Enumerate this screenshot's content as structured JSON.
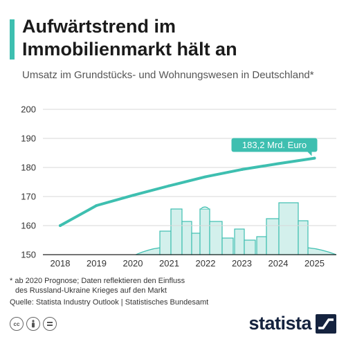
{
  "header": {
    "title": "Aufwärtstrend im Immobilienmarkt hält an",
    "subtitle": "Umsatz im Grundstücks- und Wohnungswesen in Deutschland*"
  },
  "chart_data": {
    "type": "line",
    "x": [
      "2018",
      "2019",
      "2020",
      "2021",
      "2022",
      "2023",
      "2024",
      "2025"
    ],
    "series": [
      {
        "values": [
          160.0,
          166.9,
          170.4,
          173.7,
          176.8,
          179.3,
          181.3,
          183.2
        ]
      }
    ],
    "ylim": [
      150,
      200
    ],
    "yticks": [
      150,
      160,
      170,
      180,
      190,
      200
    ],
    "annotation": {
      "text": "183,2 Mrd. Euro",
      "x": "2025",
      "y": 183.2
    },
    "grid": true,
    "line_color": "#3ebfb0"
  },
  "footnote": {
    "line1": "* ab 2020 Prognose; Daten reflektieren den Einfluss",
    "line2": "des Russland-Ukraine Krieges auf den Markt"
  },
  "source": "Quelle: Statista Industry Outlook | Statistisches Bundesamt",
  "license_icons": [
    "cc-icon",
    "attribution-icon",
    "equals-icon"
  ],
  "brand": {
    "name": "statista",
    "color": "#15233f"
  }
}
